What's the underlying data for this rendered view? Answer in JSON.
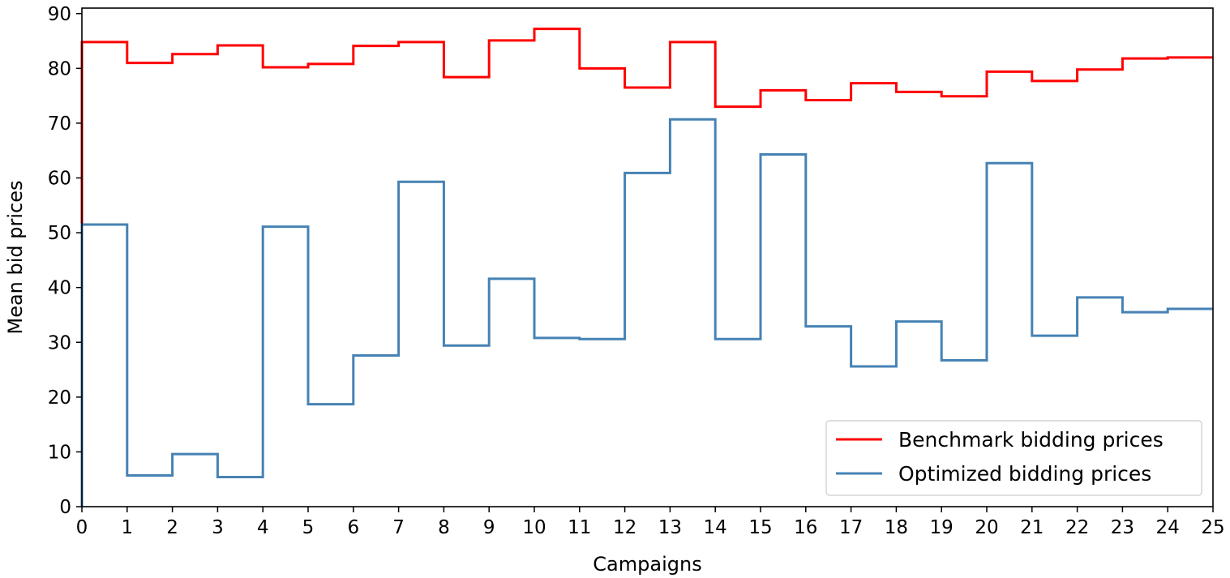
{
  "chart_data": {
    "type": "line",
    "step": "post",
    "xlabel": "Campaigns",
    "ylabel": "Mean bid prices",
    "xlim": [
      0,
      25
    ],
    "ylim": [
      0,
      91
    ],
    "xticks": [
      "0",
      "1",
      "2",
      "3",
      "4",
      "5",
      "6",
      "7",
      "8",
      "9",
      "10",
      "11",
      "12",
      "13",
      "14",
      "15",
      "16",
      "17",
      "18",
      "19",
      "20",
      "21",
      "22",
      "23",
      "24",
      "25"
    ],
    "yticks": [
      "0",
      "10",
      "20",
      "30",
      "40",
      "50",
      "60",
      "70",
      "80",
      "90"
    ],
    "legend_position": "lower-right",
    "grid": false,
    "x": [
      0,
      1,
      2,
      3,
      4,
      5,
      6,
      7,
      8,
      9,
      10,
      11,
      12,
      13,
      14,
      15,
      16,
      17,
      18,
      19,
      20,
      21,
      22,
      23,
      24
    ],
    "series": [
      {
        "name": "Benchmark bidding prices",
        "color": "#ff0000",
        "values": [
          84.8,
          81.0,
          82.6,
          84.2,
          80.2,
          80.8,
          84.1,
          84.8,
          78.4,
          85.1,
          87.2,
          80.0,
          76.5,
          84.8,
          73.0,
          76.0,
          74.2,
          77.3,
          75.7,
          74.9,
          79.4,
          77.7,
          79.8,
          81.8,
          82.0
        ]
      },
      {
        "name": "Optimized bidding prices",
        "color": "#4682b4",
        "values": [
          51.5,
          5.7,
          9.6,
          5.4,
          51.1,
          18.7,
          27.6,
          59.3,
          29.4,
          41.6,
          30.8,
          30.6,
          60.9,
          70.7,
          30.6,
          64.3,
          32.9,
          25.6,
          33.8,
          26.7,
          62.7,
          31.2,
          38.2,
          35.5,
          36.1
        ]
      }
    ]
  }
}
